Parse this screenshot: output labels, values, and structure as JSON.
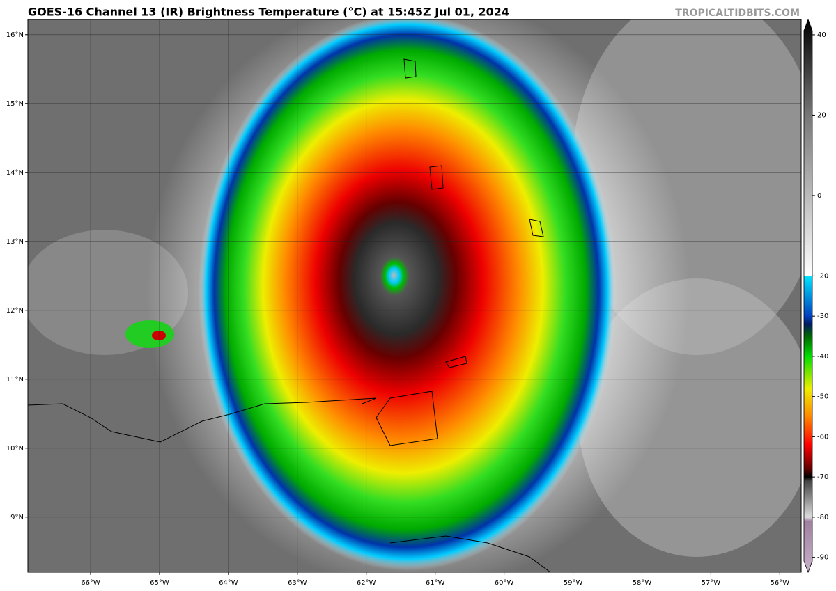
{
  "title": "GOES-16 Channel 13 (IR) Brightness Temperature (°C) at 15:45Z Jul 01, 2024",
  "site": "TROPICALTIDBITS.COM",
  "map": {
    "lonlim": [
      -66.91,
      -55.69
    ],
    "latlim": [
      8.2,
      16.22
    ],
    "lat_ticks": [
      {
        "value": 16,
        "label": "16°N"
      },
      {
        "value": 15,
        "label": "15°N"
      },
      {
        "value": 14,
        "label": "14°N"
      },
      {
        "value": 13,
        "label": "13°N"
      },
      {
        "value": 12,
        "label": "12°N"
      },
      {
        "value": 11,
        "label": "11°N"
      },
      {
        "value": 10,
        "label": "10°N"
      },
      {
        "value": 9,
        "label": "9°N"
      }
    ],
    "lon_ticks": [
      {
        "value": -66,
        "label": "66°W"
      },
      {
        "value": -65,
        "label": "65°W"
      },
      {
        "value": -64,
        "label": "64°W"
      },
      {
        "value": -63,
        "label": "63°W"
      },
      {
        "value": -62,
        "label": "62°W"
      },
      {
        "value": -61,
        "label": "61°W"
      },
      {
        "value": -60,
        "label": "60°W"
      },
      {
        "value": -59,
        "label": "59°W"
      },
      {
        "value": -58,
        "label": "58°W"
      },
      {
        "value": -57,
        "label": "57°W"
      },
      {
        "value": -56,
        "label": "56°W"
      }
    ]
  },
  "colorbar": {
    "lim": [
      -93.7,
      43.8
    ],
    "ticks": [
      40,
      20,
      0,
      -20,
      -30,
      -40,
      -50,
      -60,
      -70,
      -80,
      -90
    ],
    "colormap": [
      {
        "value": 43.8,
        "color": "#000000"
      },
      {
        "value": 20,
        "color": "#777777"
      },
      {
        "value": -19.9,
        "color": "#ffffff"
      },
      {
        "value": -20,
        "color": "#00e5ff"
      },
      {
        "value": -30,
        "color": "#0040c0"
      },
      {
        "value": -32,
        "color": "#001a60"
      },
      {
        "value": -35,
        "color": "#006600"
      },
      {
        "value": -40,
        "color": "#00dd00"
      },
      {
        "value": -48,
        "color": "#eeee00"
      },
      {
        "value": -55,
        "color": "#ff8800"
      },
      {
        "value": -62,
        "color": "#ff0000"
      },
      {
        "value": -68,
        "color": "#600000"
      },
      {
        "value": -70,
        "color": "#000000"
      },
      {
        "value": -71,
        "color": "#444444"
      },
      {
        "value": -80,
        "color": "#dddddd"
      },
      {
        "value": -81,
        "color": "#a080a0"
      },
      {
        "value": -93.7,
        "color": "#c8b0c8"
      }
    ]
  }
}
